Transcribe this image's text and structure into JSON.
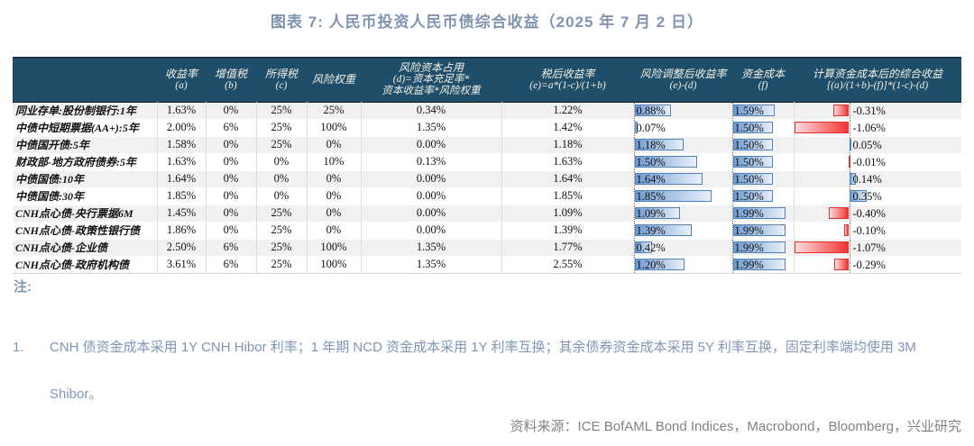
{
  "title": "图表 7:  人民币投资人民币债综合收益（2025 年 7 月 2 日）",
  "colors": {
    "header_bg": "#1f4e6b",
    "accent_text": "#8094b2",
    "bar_blue_border": "#4f81bd",
    "bar_red_border": "#e03030",
    "stripe": "#f1f1f1"
  },
  "table": {
    "columns": [
      {
        "id": "label",
        "lines": [
          ""
        ]
      },
      {
        "id": "a",
        "lines": [
          "收益率",
          "(a)"
        ]
      },
      {
        "id": "b",
        "lines": [
          "增值税",
          "(b)"
        ]
      },
      {
        "id": "c",
        "lines": [
          "所得税",
          "(c)"
        ]
      },
      {
        "id": "rw",
        "lines": [
          "风险权重"
        ]
      },
      {
        "id": "d",
        "lines": [
          "风险资本占用",
          "(d)=资本充足率*",
          "资本收益率*风险权重"
        ]
      },
      {
        "id": "e",
        "lines": [
          "税后收益率",
          "(e)=a*(1-c)/(1+b)"
        ]
      },
      {
        "id": "ed",
        "lines": [
          "风险调整后收益率",
          "(e)-(d)"
        ]
      },
      {
        "id": "f",
        "lines": [
          "资金成本",
          "(f)"
        ]
      },
      {
        "id": "total",
        "lines": [
          "计算资金成本后的综合收益",
          "[(a)/(1+b)-(f)]*(1-c)-(d)"
        ]
      }
    ],
    "rows": [
      {
        "label": "同业存单:股份制银行:1年",
        "a": "1.63%",
        "b": "0%",
        "c": "25%",
        "rw": "25%",
        "d": "0.34%",
        "e": "1.22%",
        "ed": "0.88%",
        "f": "1.59%",
        "total": "-0.31%"
      },
      {
        "label": "中债中短期票据(AA+):5年",
        "a": "2.00%",
        "b": "6%",
        "c": "25%",
        "rw": "100%",
        "d": "1.35%",
        "e": "1.42%",
        "ed": "0.07%",
        "f": "1.50%",
        "total": "-1.06%"
      },
      {
        "label": "中债国开债:5年",
        "a": "1.58%",
        "b": "0%",
        "c": "25%",
        "rw": "0%",
        "d": "0.00%",
        "e": "1.18%",
        "ed": "1.18%",
        "f": "1.50%",
        "total": "0.05%"
      },
      {
        "label": "财政部-地方政府债券:5年",
        "a": "1.63%",
        "b": "0%",
        "c": "0%",
        "rw": "10%",
        "d": "0.13%",
        "e": "1.63%",
        "ed": "1.50%",
        "f": "1.50%",
        "total": "-0.01%"
      },
      {
        "label": "中债国债:10年",
        "a": "1.64%",
        "b": "0%",
        "c": "0%",
        "rw": "0%",
        "d": "0.00%",
        "e": "1.64%",
        "ed": "1.64%",
        "f": "1.50%",
        "total": "0.14%"
      },
      {
        "label": "中债国债:30年",
        "a": "1.85%",
        "b": "0%",
        "c": "0%",
        "rw": "0%",
        "d": "0.00%",
        "e": "1.85%",
        "ed": "1.85%",
        "f": "1.50%",
        "total": "0.35%"
      },
      {
        "label": "CNH点心债-央行票据6M",
        "a": "1.45%",
        "b": "0%",
        "c": "25%",
        "rw": "0%",
        "d": "0.00%",
        "e": "1.09%",
        "ed": "1.09%",
        "f": "1.99%",
        "total": "-0.40%"
      },
      {
        "label": "CNH点心债-政策性银行债",
        "a": "1.86%",
        "b": "0%",
        "c": "25%",
        "rw": "0%",
        "d": "0.00%",
        "e": "1.39%",
        "ed": "1.39%",
        "f": "1.99%",
        "total": "-0.10%"
      },
      {
        "label": "CNH点心债-企业债",
        "a": "2.50%",
        "b": "6%",
        "c": "25%",
        "rw": "100%",
        "d": "1.35%",
        "e": "1.77%",
        "ed": "0.42%",
        "f": "1.99%",
        "total": "-1.07%"
      },
      {
        "label": "CNH点心债-政府机构债",
        "a": "3.61%",
        "b": "6%",
        "c": "25%",
        "rw": "100%",
        "d": "1.35%",
        "e": "2.55%",
        "ed": "1.20%",
        "f": "1.99%",
        "total": "-0.29%"
      }
    ]
  },
  "notes": {
    "label": "注:",
    "items": [
      {
        "num": "1.",
        "text": "CNH 债资金成本采用 1Y CNH Hibor 利率；1 年期 NCD 资金成本采用 1Y 利率互换；其余债券资金成本采用 5Y 利率互换，固定利率端均使用 3M Shibor。"
      }
    ]
  },
  "source": "资料来源：ICE BofAML Bond Indices，Macrobond，Bloomberg，兴业研究"
}
